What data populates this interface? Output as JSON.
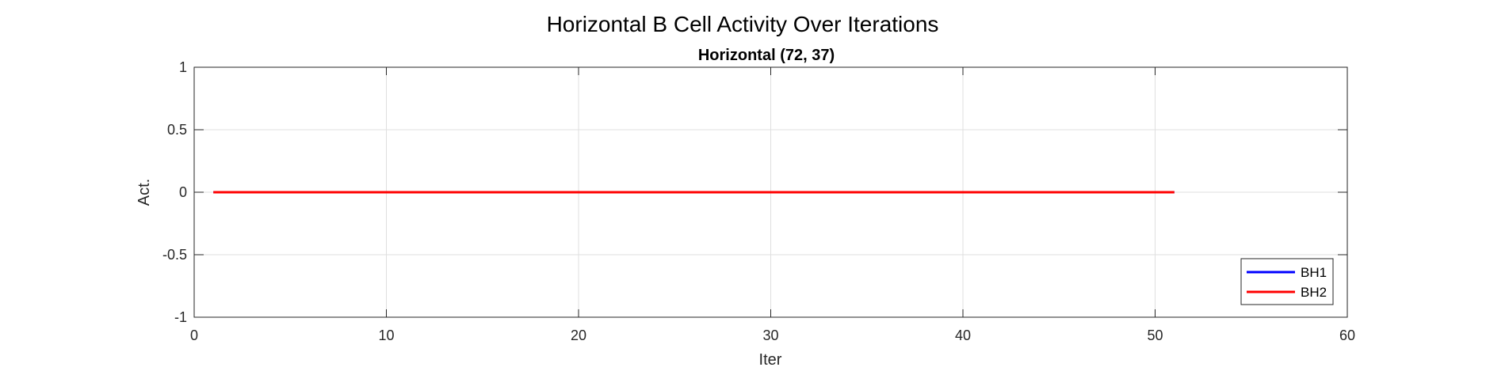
{
  "figure": {
    "suptitle": "Horizontal B Cell Activity Over Iterations"
  },
  "chart_data": {
    "type": "line",
    "title": "Horizontal (72, 37)",
    "xlabel": "Iter",
    "ylabel": "Act.",
    "xlim": [
      0,
      60
    ],
    "ylim": [
      -1,
      1
    ],
    "xticks": [
      0,
      10,
      20,
      30,
      40,
      50,
      60
    ],
    "yticks": [
      -1,
      -0.5,
      0,
      0.5,
      1
    ],
    "xtick_labels": [
      "0",
      "10",
      "20",
      "30",
      "40",
      "50",
      "60"
    ],
    "ytick_labels": [
      "-1",
      "-0.5",
      "0",
      "0.5",
      "1"
    ],
    "grid": true,
    "legend_position": "bottom-right",
    "series": [
      {
        "name": "BH1",
        "color": "#0000ff",
        "x": [
          1,
          51
        ],
        "y": [
          0,
          0
        ]
      },
      {
        "name": "BH2",
        "color": "#ff0000",
        "x": [
          1,
          51
        ],
        "y": [
          0,
          0
        ]
      }
    ]
  }
}
